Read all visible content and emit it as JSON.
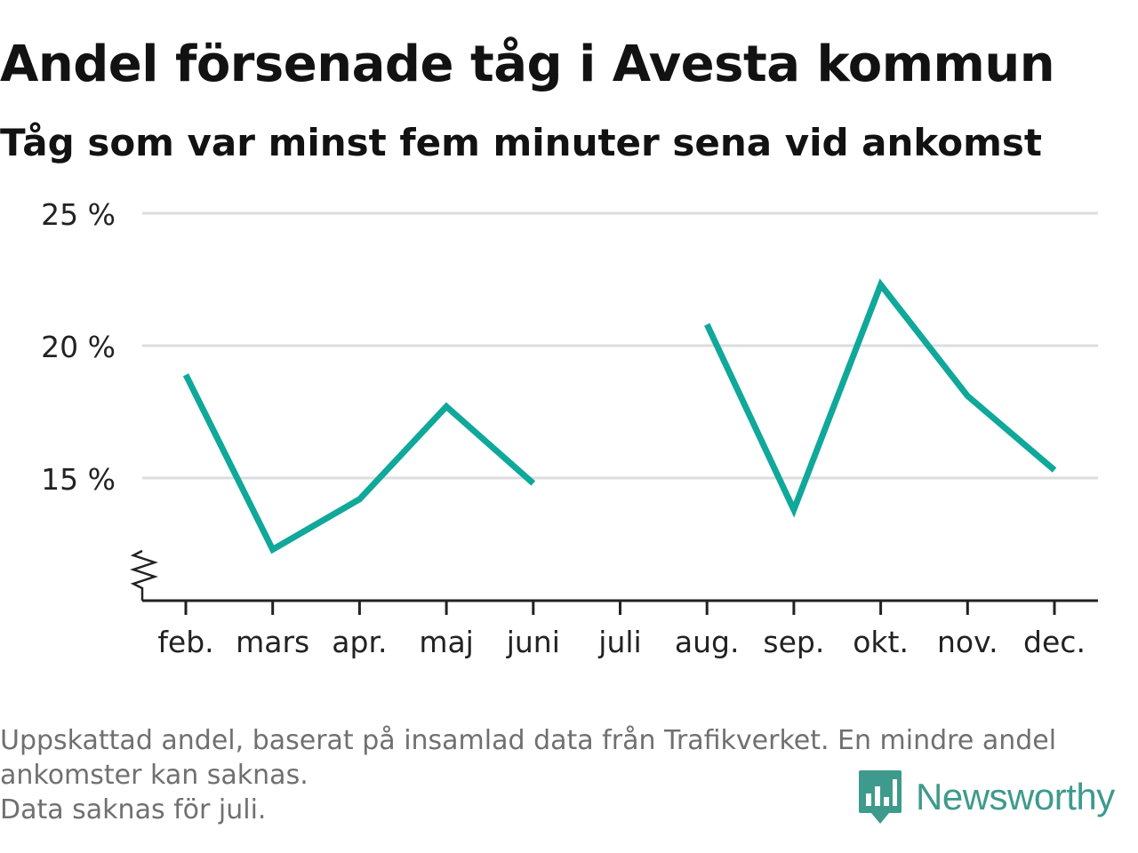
{
  "title": "Andel försenade tåg i Avesta kommun",
  "subtitle": "Tåg som var minst fem minuter sena vid ankomst",
  "footer": {
    "note_line1": "Uppskattad andel, baserat på insamlad data från Trafikverket. En mindre andel",
    "note_line2": "ankomster kan saknas.",
    "note_line3": "Data saknas för juli."
  },
  "logo": {
    "text": "Newsworthy",
    "icon": "newsworthy-logo-icon",
    "color": "#3e9a8c"
  },
  "chart_data": {
    "type": "line",
    "categories": [
      "feb.",
      "mars",
      "apr.",
      "maj",
      "juni",
      "juli",
      "aug.",
      "sep.",
      "okt.",
      "nov.",
      "dec."
    ],
    "series": [
      {
        "values": [
          18.9,
          12.3,
          14.2,
          17.7,
          14.8,
          null,
          20.8,
          13.8,
          22.3,
          18.1,
          15.3
        ]
      }
    ],
    "yticks": [
      15,
      20,
      25
    ],
    "ytick_labels": [
      "15 %",
      "20 %",
      "25 %"
    ],
    "ylim": [
      11.0,
      25.0
    ],
    "y_axis_broken": true,
    "grid": true,
    "line_color": "#10a89a",
    "grid_color": "#dddddd",
    "axis_color": "#222222"
  }
}
